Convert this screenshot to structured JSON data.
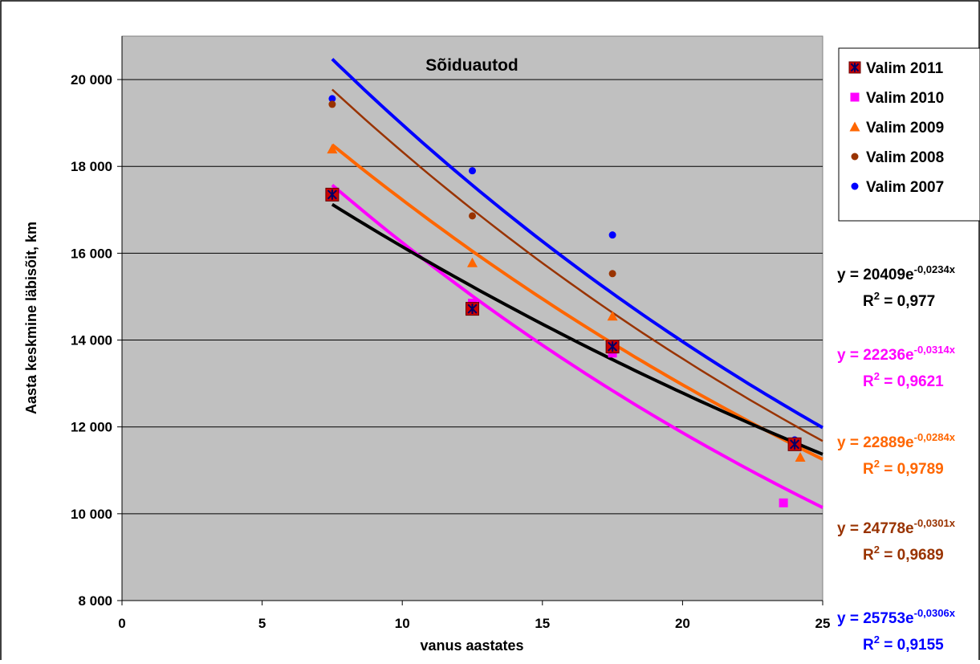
{
  "chart_data": {
    "type": "scatter",
    "title": "Sõiduautod",
    "xlabel": "vanus aastates",
    "ylabel": "Aasta keskmine läbisõit, km",
    "xlim": [
      0,
      25
    ],
    "ylim": [
      8000,
      21000
    ],
    "x_ticks": [
      0,
      5,
      10,
      15,
      20,
      25
    ],
    "y_ticks": [
      8000,
      10000,
      12000,
      14000,
      16000,
      18000,
      20000
    ],
    "y_tick_labels": [
      "8 000",
      "10 000",
      "12 000",
      "14 000",
      "16 000",
      "18 000",
      "20 000"
    ],
    "x_tick_labels": [
      "0",
      "5",
      "10",
      "15",
      "20",
      "25"
    ],
    "grid": "horizontal",
    "plot_background": "#c0c0c0",
    "legend_position": "top-right",
    "series": [
      {
        "name": "Valim 2011",
        "marker": "square-x",
        "color": "#cc0000",
        "trend_color": "#000000",
        "points": [
          [
            7.5,
            17350
          ],
          [
            12.5,
            14720
          ],
          [
            17.5,
            13850
          ],
          [
            24,
            11600
          ]
        ],
        "trend": {
          "a": 20409,
          "b": -0.0234,
          "x_from": 7.5,
          "x_to": 25
        },
        "equation_base": "y = 20409e",
        "equation_exp": "-0,0234x",
        "r2_label": "R",
        "r2_value": " = 0,977"
      },
      {
        "name": "Valim 2010",
        "marker": "square",
        "color": "#ff00ff",
        "trend_color": "#ff00ff",
        "points": [
          [
            7.5,
            17300
          ],
          [
            12.5,
            14850
          ],
          [
            17.5,
            13700
          ],
          [
            23.6,
            10250
          ]
        ],
        "trend": {
          "a": 22236,
          "b": -0.0314,
          "x_from": 7.5,
          "x_to": 25
        },
        "equation_base": "y = 22236e",
        "equation_exp": "-0,0314x",
        "r2_label": "R",
        "r2_value": " = 0,9621"
      },
      {
        "name": "Valim 2009",
        "marker": "triangle",
        "color": "#ff6600",
        "trend_color": "#ff6600",
        "points": [
          [
            7.5,
            18400
          ],
          [
            12.5,
            15780
          ],
          [
            17.5,
            14550
          ],
          [
            24.2,
            11300
          ]
        ],
        "trend": {
          "a": 22889,
          "b": -0.0284,
          "x_from": 7.5,
          "x_to": 25
        },
        "equation_base": "y = 22889e",
        "equation_exp": "-0,0284x",
        "r2_label": "R",
        "r2_value": " = 0,9789"
      },
      {
        "name": "Valim 2008",
        "marker": "circle",
        "color": "#993300",
        "trend_color": "#993300",
        "points": [
          [
            7.5,
            19430
          ],
          [
            12.5,
            16860
          ],
          [
            17.5,
            15530
          ],
          [
            24,
            11650
          ]
        ],
        "trend": {
          "a": 24778,
          "b": -0.0301,
          "x_from": 7.5,
          "x_to": 25
        },
        "equation_base": "y = 24778e",
        "equation_exp": "-0,0301x",
        "r2_label": "R",
        "r2_value": " = 0,9689"
      },
      {
        "name": "Valim 2007",
        "marker": "circle",
        "color": "#0000ff",
        "trend_color": "#0000ff",
        "points": [
          [
            7.5,
            19560
          ],
          [
            12.5,
            17900
          ],
          [
            17.5,
            16420
          ],
          [
            24,
            11700
          ]
        ],
        "trend": {
          "a": 25753,
          "b": -0.0306,
          "x_from": 7.5,
          "x_to": 25
        },
        "equation_base": "y = 25753e",
        "equation_exp": "-0,0306x",
        "r2_label": "R",
        "r2_value": " = 0,9155"
      }
    ]
  }
}
